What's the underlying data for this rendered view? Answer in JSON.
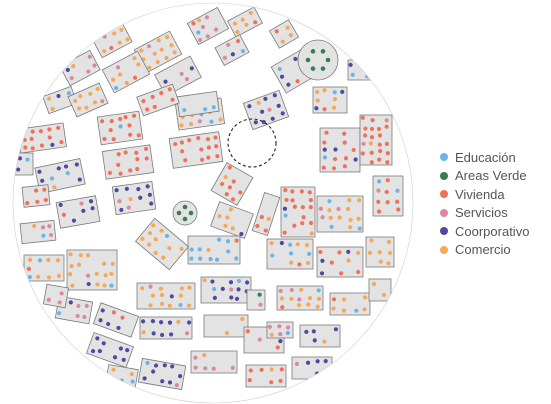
{
  "map": {
    "block_fill": "#e3e3e3",
    "block_stroke": "#7a7a7a",
    "focus_ring_color": "#222222"
  },
  "legend": {
    "items": [
      {
        "key": "educacion",
        "label": "Educación",
        "color": "#6cb4e4"
      },
      {
        "key": "areas-verde",
        "label": "Areas Verde",
        "color": "#3a7d52"
      },
      {
        "key": "vivienda",
        "label": "Vivienda",
        "color": "#f0715a"
      },
      {
        "key": "servicios",
        "label": "Servicios",
        "color": "#d98aa0"
      },
      {
        "key": "coorporativo",
        "label": "Coorporativo",
        "color": "#4e4a9e"
      },
      {
        "key": "comercio",
        "label": "Comercio",
        "color": "#f5a85a"
      }
    ]
  }
}
